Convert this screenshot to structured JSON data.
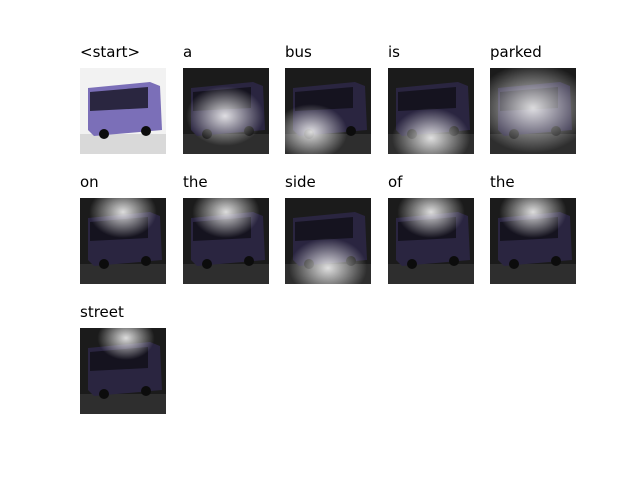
{
  "tokens": [
    {
      "word": "<start>",
      "kind": "original"
    },
    {
      "word": "a",
      "kind": "attention",
      "focus": "center"
    },
    {
      "word": "bus",
      "kind": "attention",
      "focus": "bottom-left"
    },
    {
      "word": "is",
      "kind": "attention",
      "focus": "bottom"
    },
    {
      "word": "parked",
      "kind": "attention",
      "focus": "broad"
    },
    {
      "word": "on",
      "kind": "attention",
      "focus": "top"
    },
    {
      "word": "the",
      "kind": "attention",
      "focus": "top"
    },
    {
      "word": "side",
      "kind": "attention",
      "focus": "bottom"
    },
    {
      "word": "of",
      "kind": "attention",
      "focus": "top"
    },
    {
      "word": "the",
      "kind": "attention",
      "focus": "top"
    },
    {
      "word": "street",
      "kind": "attention",
      "focus": "top-center"
    }
  ],
  "colors": {
    "bus_body": "#7b6fb8",
    "bus_dark": "#2a2540",
    "attention_glow": "#ffffff",
    "background_dark": "#1b1b1b"
  }
}
